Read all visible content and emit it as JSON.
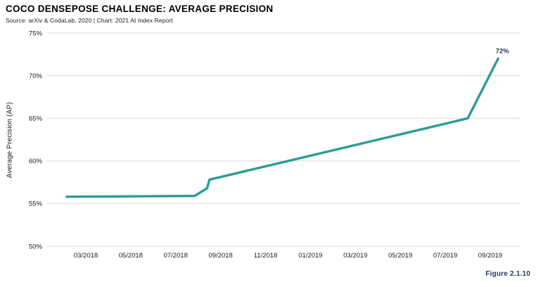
{
  "header": {
    "title": "COCO DENSEPOSE CHALLENGE: AVERAGE PRECISION",
    "source_line": "Source: arXiv & CodaLab, 2020 | Chart: 2021 AI Index Report"
  },
  "footer": {
    "figure_label": "Figure 2.1.10"
  },
  "colors": {
    "line": "#2d9c94",
    "grid": "#d9d9d9",
    "axis_text": "#1a1a1a",
    "annotation_navy": "#27345e"
  },
  "chart_data": {
    "type": "line",
    "title": "COCO DENSEPOSE CHALLENGE: AVERAGE PRECISION",
    "xlabel": "",
    "ylabel": "Average Precision (AP)",
    "ylim": [
      50,
      75
    ],
    "y_tick_labels": [
      "50%",
      "55%",
      "60%",
      "65%",
      "70%",
      "75%"
    ],
    "x_tick_labels": [
      "03/2018",
      "05/2018",
      "07/2018",
      "09/2018",
      "11/2018",
      "01/2019",
      "03/2019",
      "05/2019",
      "07/2019",
      "09/2019"
    ],
    "grid": "horizontal-only",
    "legend": "none",
    "end_label": "72%",
    "series": [
      {
        "name": "Average Precision (AP)",
        "points": [
          {
            "date": "02/2018",
            "months_from_03_2018": -0.85,
            "value": 55.8
          },
          {
            "date": "08/2018",
            "months_from_03_2018": 4.85,
            "value": 55.9
          },
          {
            "date": "08/2018",
            "months_from_03_2018": 5.4,
            "value": 56.8
          },
          {
            "date": "08/2018",
            "months_from_03_2018": 5.5,
            "value": 57.8
          },
          {
            "date": "08/2019",
            "months_from_03_2018": 17.0,
            "value": 65.0
          },
          {
            "date": "09/2019",
            "months_from_03_2018": 18.35,
            "value": 72.0
          }
        ]
      }
    ]
  }
}
